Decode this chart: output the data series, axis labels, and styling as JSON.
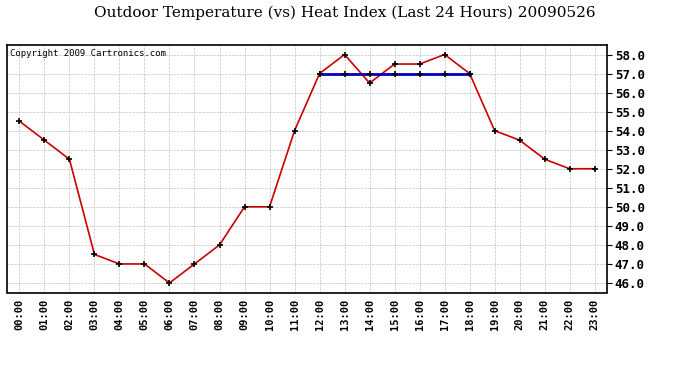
{
  "title": "Outdoor Temperature (vs) Heat Index (Last 24 Hours) 20090526",
  "copyright": "Copyright 2009 Cartronics.com",
  "x_labels": [
    "00:00",
    "01:00",
    "02:00",
    "03:00",
    "04:00",
    "05:00",
    "06:00",
    "07:00",
    "08:00",
    "09:00",
    "10:00",
    "11:00",
    "12:00",
    "13:00",
    "14:00",
    "15:00",
    "16:00",
    "17:00",
    "18:00",
    "19:00",
    "20:00",
    "21:00",
    "22:00",
    "23:00"
  ],
  "temp_data": [
    54.5,
    53.5,
    52.5,
    47.5,
    47.0,
    47.0,
    46.0,
    47.0,
    48.0,
    50.0,
    50.0,
    54.0,
    57.0,
    58.0,
    56.5,
    57.5,
    57.5,
    58.0,
    57.0,
    54.0,
    53.5,
    52.5,
    52.0,
    52.0
  ],
  "heat_index_data": [
    null,
    null,
    null,
    null,
    null,
    null,
    null,
    null,
    null,
    null,
    null,
    null,
    57.0,
    57.0,
    57.0,
    57.0,
    57.0,
    57.0,
    57.0,
    null,
    null,
    null,
    null,
    null
  ],
  "ylim_min": 45.5,
  "ylim_max": 58.5,
  "yticks": [
    46.0,
    47.0,
    48.0,
    49.0,
    50.0,
    51.0,
    52.0,
    53.0,
    54.0,
    55.0,
    56.0,
    57.0,
    58.0
  ],
  "temp_color": "#cc0000",
  "heat_index_color": "#0000bb",
  "bg_color": "#ffffff",
  "grid_color": "#bbbbbb",
  "title_fontsize": 11,
  "copyright_fontsize": 6.5,
  "tick_fontsize": 7.5,
  "ytick_fontsize": 9
}
